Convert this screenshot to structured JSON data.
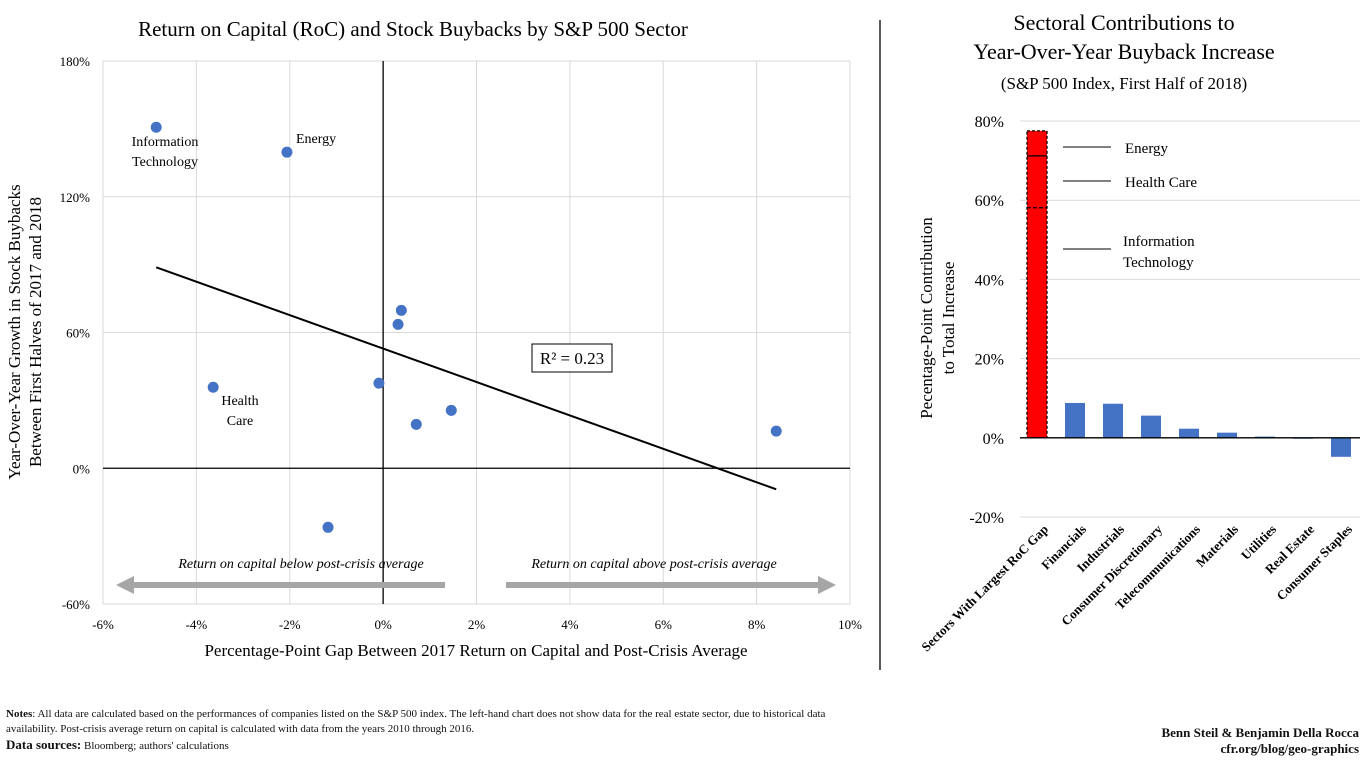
{
  "chart_data": [
    {
      "type": "scatter",
      "title": "Return on Capital (RoC) and Stock Buybacks by S&P 500 Sector",
      "xlabel": "Percentage-Point Gap Between 2017 Return on Capital and Post-Crisis Average",
      "ylabel": [
        "Year-Over-Year Growth in Stock Buybacks",
        "Between First Halves of 2017 and 2018"
      ],
      "xlim": [
        -6,
        10
      ],
      "ylim": [
        -60,
        180
      ],
      "x_ticks": [
        "-6%",
        "-4%",
        "-2%",
        "0%",
        "2%",
        "4%",
        "6%",
        "8%",
        "10%"
      ],
      "x_tick_values": [
        -6,
        -4,
        -2,
        0,
        2,
        4,
        6,
        8,
        10
      ],
      "y_ticks": [
        "-60%",
        "0%",
        "60%",
        "120%",
        "180%"
      ],
      "y_tick_values": [
        -60,
        0,
        60,
        120,
        180
      ],
      "grid": true,
      "point_color": "#4472c4",
      "points": [
        {
          "x": -4.86,
          "y": 150.7,
          "label": [
            "Information",
            "Technology"
          ]
        },
        {
          "x": -2.06,
          "y": 139.7,
          "label": [
            "Energy"
          ]
        },
        {
          "x": -3.64,
          "y": 35.8,
          "label": [
            "Health",
            "Care"
          ]
        },
        {
          "x": 0.39,
          "y": 69.8
        },
        {
          "x": 0.32,
          "y": 63.6
        },
        {
          "x": -0.09,
          "y": 37.6
        },
        {
          "x": 0.71,
          "y": 19.4
        },
        {
          "x": 1.46,
          "y": 25.6
        },
        {
          "x": 8.42,
          "y": 16.4
        },
        {
          "x": -1.18,
          "y": -26.1
        }
      ],
      "trendline": {
        "x": [
          -4.86,
          8.42
        ],
        "y": [
          88.8,
          -9.3
        ],
        "r2_label": "R² = 0.23"
      },
      "annotations": {
        "below": "Return on capital below post-crisis average",
        "above": "Return on capital above post-crisis average"
      }
    },
    {
      "type": "bar",
      "title": [
        "Sectoral Contributions to",
        "Year-Over-Year Buyback Increase"
      ],
      "subtitle": "(S&P 500 Index, First Half of 2018)",
      "ylabel": [
        "Pecentage-Point Contribution",
        "to Total Increase"
      ],
      "ylim": [
        -20,
        80
      ],
      "y_ticks": [
        "-20%",
        "0%",
        "20%",
        "40%",
        "60%",
        "80%"
      ],
      "y_tick_values": [
        -20,
        0,
        20,
        40,
        60,
        80
      ],
      "grid": true,
      "categories": [
        "Sectors With Largest RoC Gap",
        "Financials",
        "Industrials",
        "Consumer Discretionary",
        "Telecommunications",
        "Materials",
        "Utilities",
        "Real Estate",
        "Consumer Staples"
      ],
      "values": [
        77.5,
        8.8,
        8.6,
        5.6,
        2.3,
        1.3,
        0.3,
        0.0,
        -4.8
      ],
      "bar_color": "#4472c4",
      "highlight_color": "#ff0000",
      "stacked_first_bar": [
        {
          "name": "Information Technology",
          "label": [
            "Information",
            "Technology"
          ],
          "value": 58.1
        },
        {
          "name": "Health Care",
          "label": [
            "Health Care"
          ],
          "value": 13.1
        },
        {
          "name": "Energy",
          "label": [
            "Energy"
          ],
          "value": 6.3
        }
      ]
    }
  ],
  "notes": {
    "label": "Notes",
    "text": ": All data are calculated based on the performances of companies listed on the S&P 500 index. The left-hand chart does not show data for the real estate sector, due to historical data availability. Post-crisis average return on capital is calculated with data from the years 2010 through 2016.",
    "sources_label": "Data sources:",
    "sources": " Bloomberg; authors' calculations"
  },
  "credit": {
    "authors": "Benn Steil & Benjamin Della Rocca",
    "site": "cfr.org/blog/geo-graphics"
  }
}
